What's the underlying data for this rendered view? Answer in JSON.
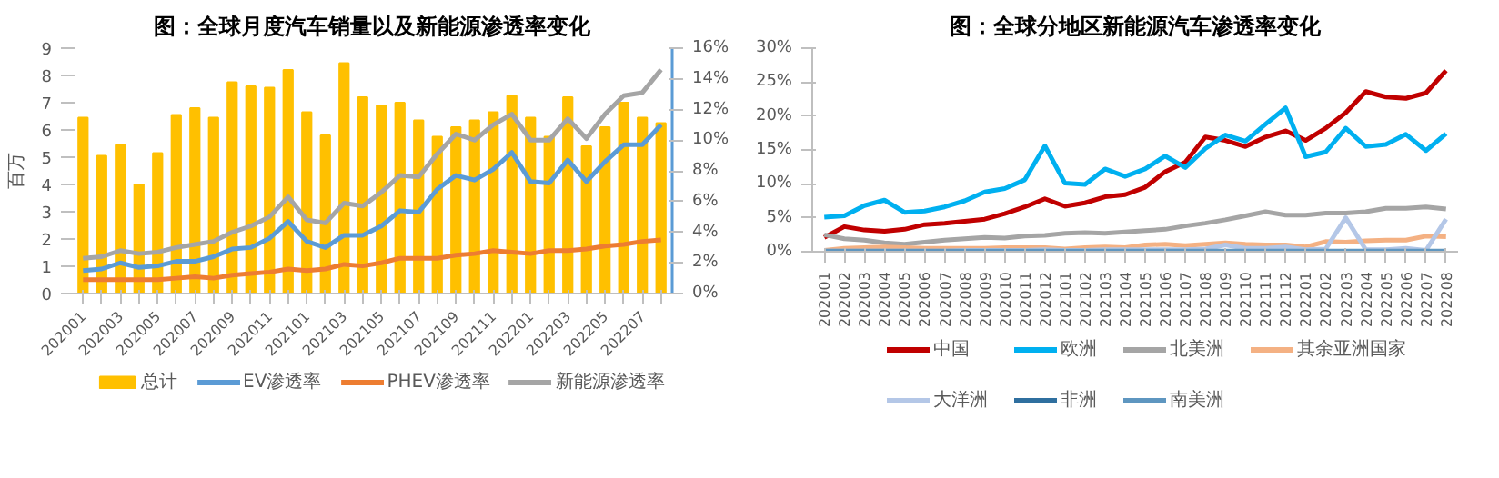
{
  "chart_data": [
    {
      "type": "bar",
      "title": "图：全球月度汽车销量以及新能源渗透率变化",
      "ylabel": "百万",
      "categories": [
        "202001",
        null,
        "202003",
        null,
        "202005",
        null,
        "202007",
        null,
        "202009",
        null,
        "202011",
        null,
        "202101",
        null,
        "202103",
        null,
        "202105",
        null,
        "202107",
        null,
        "202109",
        null,
        "202111",
        null,
        "202201",
        null,
        "202203",
        null,
        "202205",
        null,
        "202207",
        null
      ],
      "ylim": [
        0,
        9
      ],
      "yticks": [
        0,
        1,
        2,
        3,
        4,
        5,
        6,
        7,
        8,
        9
      ],
      "y2lim": [
        0,
        16
      ],
      "y2ticks": [
        {
          "value": 0,
          "label": "0%"
        },
        {
          "value": 2,
          "label": "2%"
        },
        {
          "value": 4,
          "label": "4%"
        },
        {
          "value": 6,
          "label": "6%"
        },
        {
          "value": 8,
          "label": "8%"
        },
        {
          "value": 10,
          "label": "10%"
        },
        {
          "value": 12,
          "label": "12%"
        },
        {
          "value": 14,
          "label": "14%"
        },
        {
          "value": 16,
          "label": "16%"
        }
      ],
      "grid": false,
      "legend": "bottom",
      "series": [
        {
          "name": "总计",
          "type": "bar",
          "color": "#ffc000",
          "values": [
            6.45,
            5.05,
            5.45,
            4.0,
            5.15,
            6.55,
            6.8,
            6.45,
            7.75,
            7.6,
            7.55,
            8.2,
            6.65,
            5.8,
            8.45,
            7.2,
            6.9,
            7.0,
            6.35,
            5.75,
            6.1,
            6.35,
            6.65,
            7.25,
            6.45,
            5.75,
            7.2,
            5.4,
            6.1,
            7.0,
            6.45,
            6.25
          ]
        },
        {
          "name": "EV渗透率",
          "type": "line",
          "axis": "y2",
          "color": "#5b9bd5",
          "values": [
            1.5,
            1.6,
            2.0,
            1.7,
            1.8,
            2.1,
            2.1,
            2.4,
            2.9,
            3.0,
            3.6,
            4.7,
            3.4,
            3.0,
            3.8,
            3.8,
            4.4,
            5.4,
            5.3,
            6.8,
            7.7,
            7.4,
            8.1,
            9.2,
            7.3,
            7.2,
            8.7,
            7.3,
            8.6,
            9.7,
            9.7,
            11.0
          ]
        },
        {
          "name": "PHEV渗透率",
          "type": "line",
          "axis": "y2",
          "color": "#ed7d31",
          "values": [
            0.9,
            0.9,
            0.9,
            0.9,
            0.9,
            1.0,
            1.1,
            1.0,
            1.2,
            1.3,
            1.4,
            1.6,
            1.5,
            1.6,
            1.9,
            1.8,
            2.0,
            2.3,
            2.3,
            2.3,
            2.5,
            2.6,
            2.8,
            2.7,
            2.6,
            2.8,
            2.8,
            2.9,
            3.1,
            3.2,
            3.4,
            3.5
          ]
        },
        {
          "name": "新能源渗透率",
          "type": "line",
          "axis": "y2",
          "color": "#a5a5a5",
          "values": [
            2.3,
            2.4,
            2.8,
            2.6,
            2.7,
            3.0,
            3.2,
            3.4,
            4.0,
            4.4,
            5.0,
            6.3,
            4.8,
            4.6,
            5.9,
            5.7,
            6.6,
            7.7,
            7.6,
            9.1,
            10.4,
            10.0,
            11.0,
            11.7,
            10.0,
            10.0,
            11.4,
            10.1,
            11.7,
            12.9,
            13.1,
            14.6
          ]
        }
      ]
    },
    {
      "type": "line",
      "title": "图：全球分地区新能源汽车渗透率变化",
      "categories": [
        "202001",
        "202002",
        "202003",
        "202004",
        "202005",
        "202006",
        "202007",
        "202008",
        "202009",
        "202010",
        "202011",
        "202012",
        "202101",
        "202102",
        "202103",
        "202104",
        "202105",
        "202106",
        "202107",
        "202108",
        "202109",
        "202110",
        "202111",
        "202112",
        "202201",
        "202202",
        "202203",
        "202204",
        "202205",
        "202206",
        "202207",
        "202208"
      ],
      "ylim": [
        0,
        30
      ],
      "yticks": [
        {
          "value": 0,
          "label": "0%"
        },
        {
          "value": 5,
          "label": "5%"
        },
        {
          "value": 10,
          "label": "10%"
        },
        {
          "value": 15,
          "label": "15%"
        },
        {
          "value": 20,
          "label": "20%"
        },
        {
          "value": 25,
          "label": "25%"
        },
        {
          "value": 30,
          "label": "30%"
        }
      ],
      "grid": false,
      "legend": "bottom",
      "series": [
        {
          "name": "中国",
          "color": "#c00000",
          "values": [
            2.1,
            3.7,
            3.2,
            3.0,
            3.3,
            4.0,
            4.2,
            4.5,
            4.8,
            5.6,
            6.6,
            7.8,
            6.7,
            7.2,
            8.1,
            8.4,
            9.5,
            11.8,
            13.2,
            16.9,
            16.4,
            15.5,
            16.9,
            17.8,
            16.4,
            18.2,
            20.5,
            23.6,
            22.8,
            22.6,
            23.4,
            26.7
          ]
        },
        {
          "name": "欧洲",
          "color": "#00b0f0",
          "values": [
            5.1,
            5.3,
            6.8,
            7.6,
            5.8,
            6.0,
            6.6,
            7.5,
            8.8,
            9.3,
            10.6,
            15.6,
            10.1,
            9.9,
            12.2,
            11.1,
            12.2,
            14.1,
            12.4,
            15.2,
            17.2,
            16.3,
            18.8,
            21.2,
            14.0,
            14.7,
            18.2,
            15.5,
            15.8,
            17.3,
            14.9,
            17.4
          ]
        },
        {
          "name": "北美洲",
          "color": "#a5a5a5",
          "values": [
            2.5,
            1.9,
            1.7,
            1.3,
            1.1,
            1.4,
            1.7,
            1.9,
            2.1,
            2.0,
            2.3,
            2.4,
            2.7,
            2.8,
            2.7,
            2.9,
            3.1,
            3.3,
            3.8,
            4.2,
            4.7,
            5.3,
            5.9,
            5.4,
            5.4,
            5.7,
            5.7,
            5.9,
            6.4,
            6.4,
            6.6,
            6.3
          ]
        },
        {
          "name": "其余亚洲国家",
          "color": "#f4b183",
          "values": [
            0.2,
            0.5,
            0.6,
            0.7,
            0.6,
            0.5,
            0.5,
            0.5,
            0.5,
            0.6,
            0.6,
            0.6,
            0.4,
            0.6,
            0.7,
            0.6,
            1.0,
            1.1,
            0.9,
            1.1,
            1.3,
            1.1,
            1.0,
            1.0,
            0.7,
            1.5,
            1.4,
            1.6,
            1.7,
            1.7,
            2.3,
            2.2
          ]
        },
        {
          "name": "大洋洲",
          "color": "#b4c7e7",
          "values": [
            0.1,
            0.1,
            0.1,
            0.1,
            0.1,
            0.1,
            0.1,
            0.2,
            0.2,
            0.2,
            0.2,
            0.3,
            0.2,
            0.2,
            0.3,
            0.3,
            0.3,
            0.3,
            0.3,
            0.4,
            1.0,
            0.5,
            0.5,
            0.7,
            0.3,
            0.4,
            5.0,
            0.3,
            0.3,
            0.5,
            0.2,
            4.8
          ]
        },
        {
          "name": "非洲",
          "color": "#2f6f9f",
          "values": [
            null,
            null,
            null,
            null,
            null,
            null,
            null,
            null,
            null,
            null,
            null,
            null,
            null,
            null,
            null,
            null,
            null,
            null,
            null,
            null,
            null,
            null,
            null,
            null,
            null,
            null,
            null,
            null,
            null,
            null,
            null,
            null
          ]
        },
        {
          "name": "南美洲",
          "color": "#5e96c0",
          "values": [
            0.1,
            0.1,
            0.1,
            0.1,
            0.1,
            0.1,
            0.1,
            0.1,
            0.1,
            0.1,
            0.1,
            0.1,
            0.1,
            0.1,
            0.1,
            0.1,
            0.1,
            0.1,
            0.1,
            0.1,
            0.1,
            0.1,
            0.1,
            0.1,
            0.1,
            0.1,
            0.1,
            0.1,
            0.1,
            0.1,
            0.1,
            0.1
          ]
        }
      ]
    }
  ]
}
